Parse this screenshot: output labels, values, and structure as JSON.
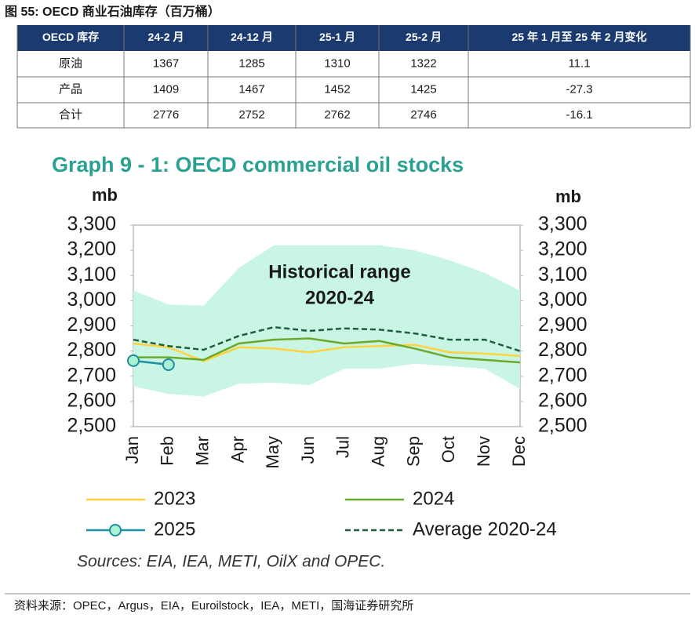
{
  "header": {
    "title": "图 55:  OECD 商业石油库存（百万桶）"
  },
  "table": {
    "columns": [
      "OECD 库存",
      "24-2 月",
      "24-12 月",
      "25-1 月",
      "25-2 月",
      "25 年 1 月至 25 年 2 月变化"
    ],
    "rows": [
      [
        "原油",
        1367,
        1285,
        1310,
        1322,
        11.1
      ],
      [
        "产品",
        1409,
        1467,
        1452,
        1425,
        -27.3
      ],
      [
        "合计",
        2776,
        2752,
        2762,
        2746,
        -16.1
      ]
    ]
  },
  "chart_data": {
    "type": "line",
    "title": "Graph 9 - 1: OECD commercial oil stocks",
    "ylabel": "mb",
    "y2label": "mb",
    "categories": [
      "Jan",
      "Feb",
      "Mar",
      "Apr",
      "May",
      "Jun",
      "Jul",
      "Aug",
      "Sep",
      "Oct",
      "Nov",
      "Dec"
    ],
    "range": {
      "color": "#c9f5e4",
      "high": [
        3040,
        2985,
        2980,
        3130,
        3220,
        3220,
        3220,
        3220,
        3200,
        3160,
        3110,
        3040
      ],
      "low": [
        2660,
        2630,
        2620,
        2670,
        2675,
        2665,
        2730,
        2730,
        2750,
        2740,
        2730,
        2650
      ]
    },
    "annotation": [
      "Historical range",
      "2020-24"
    ],
    "series": [
      {
        "name": "2023",
        "color": "#ffd23f",
        "style": "solid",
        "values": [
          2830,
          2815,
          2760,
          2815,
          2810,
          2795,
          2815,
          2820,
          2825,
          2795,
          2790,
          2780
        ]
      },
      {
        "name": "2024",
        "color": "#6aaa2a",
        "style": "solid",
        "values": [
          2775,
          2775,
          2765,
          2830,
          2845,
          2850,
          2830,
          2840,
          2810,
          2775,
          2765,
          2755
        ]
      },
      {
        "name": "2025",
        "color": "#1f8f9f",
        "style": "marker",
        "values": [
          2762,
          2746,
          null,
          null,
          null,
          null,
          null,
          null,
          null,
          null,
          null,
          null
        ]
      },
      {
        "name": "Average 2020-24",
        "color": "#1e5e3e",
        "style": "dashed",
        "values": [
          2845,
          2820,
          2805,
          2860,
          2895,
          2880,
          2890,
          2885,
          2870,
          2845,
          2845,
          2800
        ]
      }
    ],
    "ylim": [
      2500,
      3300
    ],
    "y2lim": [
      2500,
      3300
    ],
    "yticks": [
      {
        "value": 2500,
        "label": "2,500"
      },
      {
        "value": 2600,
        "label": "2,600"
      },
      {
        "value": 2700,
        "label": "2,700"
      },
      {
        "value": 2800,
        "label": "2,800"
      },
      {
        "value": 2900,
        "label": "2,900"
      },
      {
        "value": 3000,
        "label": "3,000"
      },
      {
        "value": 3100,
        "label": "3,100"
      },
      {
        "value": 3200,
        "label": "3,200"
      },
      {
        "value": 3300,
        "label": "3,300"
      }
    ],
    "y2ticks": [
      {
        "value": 2500,
        "label": "2,500"
      },
      {
        "value": 2600,
        "label": "2,600"
      },
      {
        "value": 2700,
        "label": "2,700"
      },
      {
        "value": 2800,
        "label": "2,800"
      },
      {
        "value": 2900,
        "label": "2,900"
      },
      {
        "value": 3000,
        "label": "3,000"
      },
      {
        "value": 3100,
        "label": "3,100"
      },
      {
        "value": 3200,
        "label": "3,200"
      },
      {
        "value": 3300,
        "label": "3,300"
      }
    ],
    "note": "Sources: EIA, IEA, METI, OilX and OPEC."
  },
  "source": "资料来源：OPEC，Argus，EIA，Euroilstock，IEA，METI，国海证券研究所"
}
